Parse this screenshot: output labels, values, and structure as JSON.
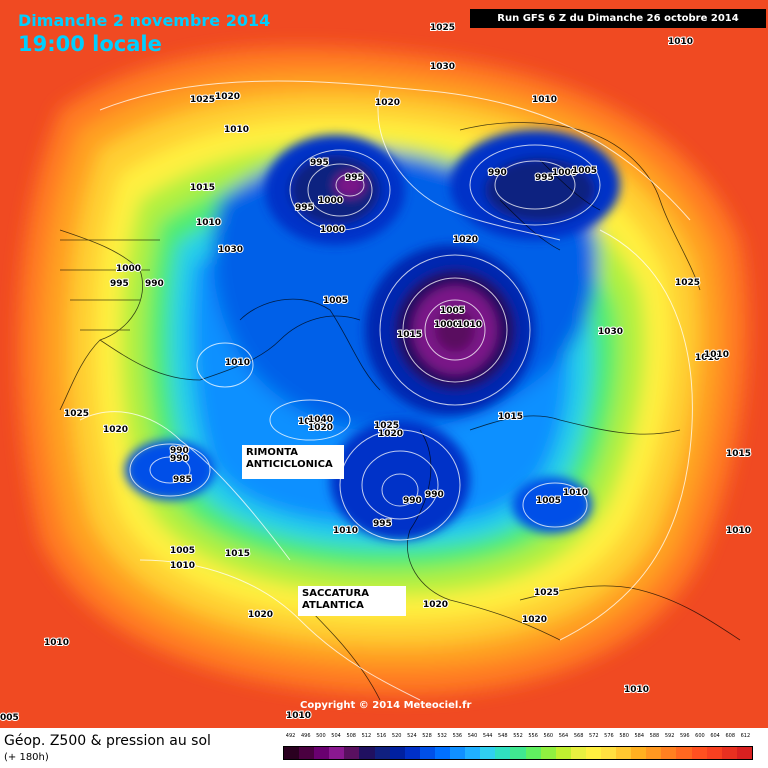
{
  "header": {
    "date": "Dimanche 2 novembre 2014",
    "time": "19:00 locale",
    "run": "Run GFS 6 Z du Dimanche 26 octobre 2014"
  },
  "annotations": {
    "rimonta_line1": "RIMONTA",
    "rimonta_line2": "ANTICICLONICA",
    "saccatura_line1": "SACCATURA",
    "saccatura_line2": "ATLANTICA"
  },
  "copyright": "Copyright © 2014 Meteociel.fr",
  "footer": {
    "title": "Géop. Z500 & pression au sol",
    "subtitle": "(+ 180h)"
  },
  "scale": {
    "values": [
      "492",
      "496",
      "500",
      "504",
      "508",
      "512",
      "516",
      "520",
      "524",
      "528",
      "532",
      "536",
      "540",
      "544",
      "548",
      "552",
      "556",
      "560",
      "564",
      "568",
      "572",
      "576",
      "580",
      "584",
      "588",
      "592",
      "596",
      "600",
      "604",
      "608",
      "612"
    ],
    "colors": [
      "#2a0020",
      "#4a0040",
      "#6a0070",
      "#8a1890",
      "#5a1060",
      "#201060",
      "#102080",
      "#0020a0",
      "#0030c8",
      "#0050e8",
      "#0070ff",
      "#1090ff",
      "#20b0ff",
      "#30d0f0",
      "#30e0c0",
      "#40e890",
      "#60f060",
      "#90f040",
      "#c0f030",
      "#e8f040",
      "#fff040",
      "#ffe040",
      "#ffc830",
      "#ffb020",
      "#ff9820",
      "#ff8020",
      "#ff6820",
      "#ff5020",
      "#f84020",
      "#e83020",
      "#d82020"
    ]
  },
  "isobars": [
    "1025",
    "1030",
    "1010",
    "1025",
    "1020",
    "1020",
    "1010",
    "1010",
    "995",
    "995",
    "1000",
    "995",
    "990",
    "995",
    "1000",
    "1005",
    "1015",
    "1010",
    "1000",
    "1020",
    "1000",
    "995",
    "990",
    "1030",
    "1005",
    "1025",
    "1005",
    "1000",
    "1010",
    "1015",
    "1030",
    "1010",
    "1010",
    "1010",
    "1040",
    "1040",
    "1020",
    "1025",
    "1020",
    "1025",
    "1020",
    "990",
    "990",
    "985",
    "1015",
    "990",
    "990",
    "1005",
    "1010",
    "1010",
    "995",
    "1005",
    "1010",
    "1015",
    "1015",
    "1010",
    "1020",
    "1025",
    "1020",
    "1020",
    "1010",
    "1010",
    "005",
    "1010"
  ]
}
